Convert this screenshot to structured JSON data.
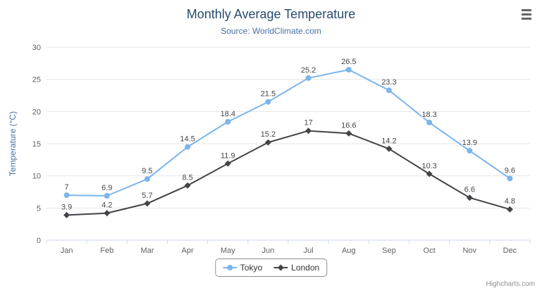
{
  "chart_data": {
    "type": "line",
    "title": "Monthly Average Temperature",
    "subtitle": "Source: WorldClimate.com",
    "categories": [
      "Jan",
      "Feb",
      "Mar",
      "Apr",
      "May",
      "Jun",
      "Jul",
      "Aug",
      "Sep",
      "Oct",
      "Nov",
      "Dec"
    ],
    "series": [
      {
        "name": "Tokyo",
        "color": "#7cb5ec",
        "marker": "circle",
        "values": [
          7,
          6.9,
          9.5,
          14.5,
          18.4,
          21.5,
          25.2,
          26.5,
          23.3,
          18.3,
          13.9,
          9.6
        ]
      },
      {
        "name": "London",
        "color": "#434348",
        "marker": "diamond",
        "values": [
          3.9,
          4.2,
          5.7,
          8.5,
          11.9,
          15.2,
          17,
          16.6,
          14.2,
          10.3,
          6.6,
          4.8
        ]
      }
    ],
    "xlabel": "",
    "ylabel": "Temperature (°C)",
    "ylim": [
      0,
      30
    ],
    "yticks": [
      0,
      5,
      10,
      15,
      20,
      25,
      30
    ],
    "grid": true,
    "data_labels": true,
    "legend_position": "bottom"
  },
  "icons": {
    "context_menu": "hamburger"
  },
  "credits": {
    "label": "Highcharts.com"
  },
  "colors": {
    "title": "#274b6d",
    "subtitle": "#4572a7",
    "gridline": "#e6e6e6",
    "axis_line": "#ccd6eb",
    "axis_label": "#606060"
  }
}
